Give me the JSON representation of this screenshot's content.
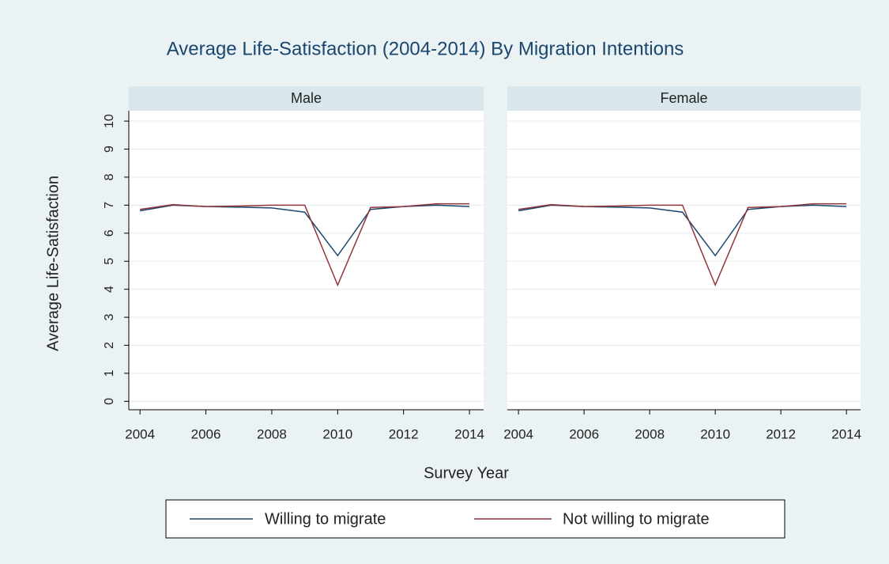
{
  "chart_data": {
    "type": "line",
    "title": "Average Life-Satisfaction (2004-2014) By Migration Intentions",
    "x_label": "Survey Year",
    "y_label": "Average Life-Satisfaction",
    "x": [
      2004,
      2005,
      2006,
      2007,
      2008,
      2009,
      2010,
      2011,
      2012,
      2013,
      2014
    ],
    "xlim": [
      2003.66,
      2014.43
    ],
    "xticks": [
      2004,
      2006,
      2008,
      2010,
      2012,
      2014
    ],
    "ylim": [
      -0.3,
      10.37
    ],
    "yticks": [
      0,
      1,
      2,
      3,
      4,
      5,
      6,
      7,
      8,
      9,
      10
    ],
    "grid": true,
    "legend": "bottom",
    "series": [
      {
        "name": "Willing to migrate",
        "color": "#1a476f"
      },
      {
        "name": "Not willing to migrate",
        "color": "#90353b"
      }
    ],
    "panels": [
      {
        "title": "Male",
        "series": [
          {
            "values": [
              6.8,
              7.0,
              6.95,
              6.93,
              6.9,
              6.75,
              5.2,
              6.85,
              6.95,
              7.0,
              6.95
            ]
          },
          {
            "values": [
              6.85,
              7.02,
              6.95,
              6.97,
              7.0,
              7.0,
              4.15,
              6.92,
              6.95,
              7.05,
              7.05
            ]
          }
        ]
      },
      {
        "title": "Female",
        "series": [
          {
            "values": [
              6.8,
              7.0,
              6.95,
              6.93,
              6.9,
              6.75,
              5.2,
              6.85,
              6.95,
              7.0,
              6.95
            ]
          },
          {
            "values": [
              6.85,
              7.02,
              6.95,
              6.97,
              7.0,
              7.0,
              4.15,
              6.92,
              6.95,
              7.05,
              7.05
            ]
          }
        ]
      }
    ]
  }
}
